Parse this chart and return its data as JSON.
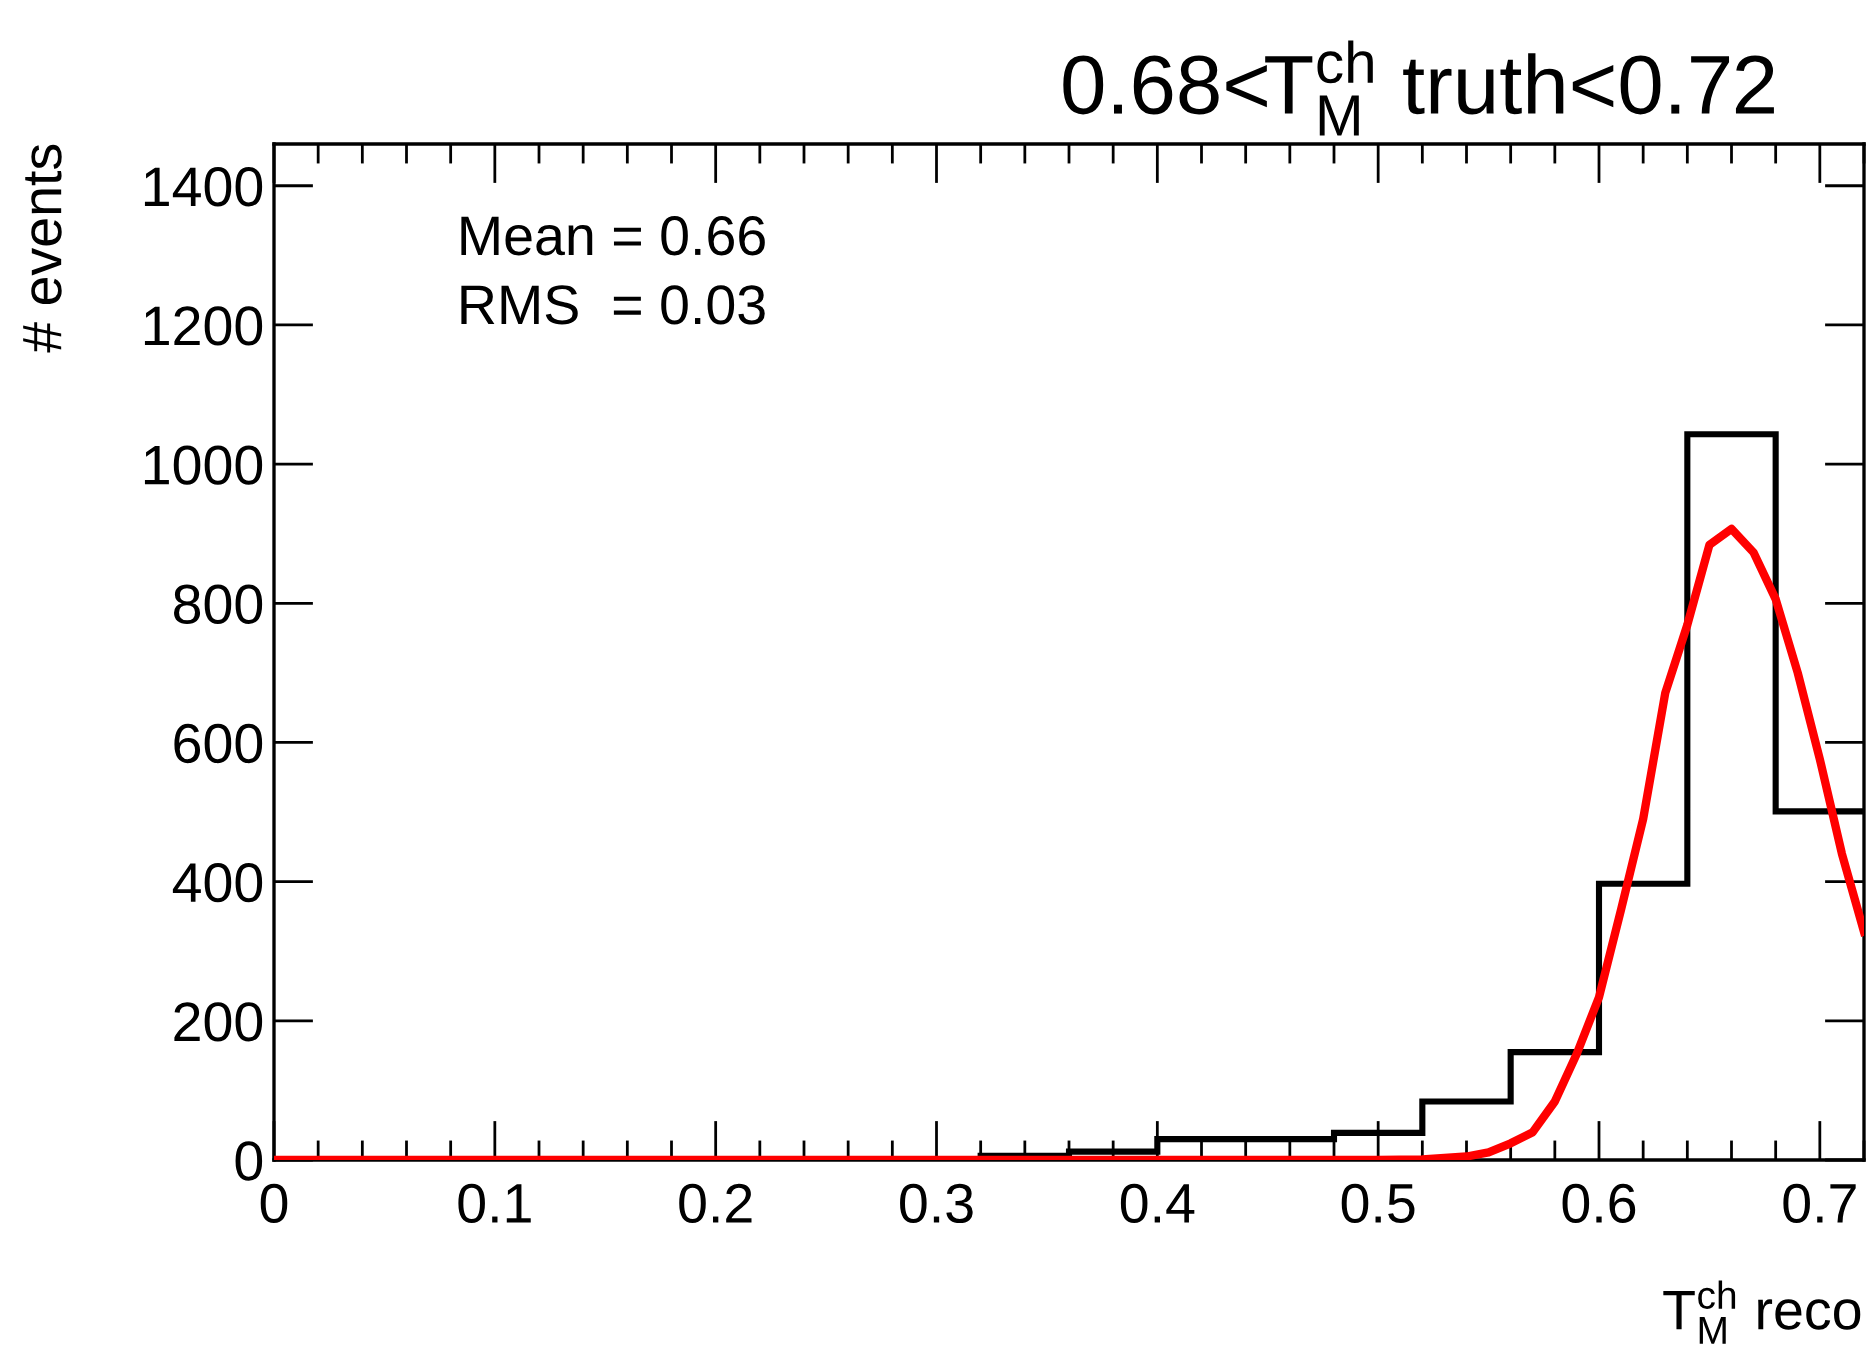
{
  "chart_data": {
    "type": "histogram",
    "title": "0.68<T$^{ch}$$_{M}$ truth<0.72",
    "xlabel": "T$^{ch}$$_{M}$ reco",
    "ylabel": "# events",
    "annotations": [
      "Mean = 0.66",
      "RMS  = 0.03"
    ],
    "bins": [
      0,
      0.04,
      0.08,
      0.12,
      0.16,
      0.2,
      0.24,
      0.28,
      0.32,
      0.36,
      0.4,
      0.44,
      0.48,
      0.52,
      0.56,
      0.6,
      0.64,
      0.68,
      0.72
    ],
    "series": [
      {
        "color": "#000000",
        "values": [
          0,
          0,
          0,
          0,
          0,
          0,
          0,
          0,
          6,
          12,
          30,
          30,
          39,
          84,
          155,
          397,
          1043,
          501
        ]
      },
      {
        "type": "line",
        "color": "#ff0000",
        "x": [
          0,
          0.5,
          0.52,
          0.54,
          0.55,
          0.56,
          0.57,
          0.58,
          0.59,
          0.6,
          0.61,
          0.62,
          0.63,
          0.64,
          0.65,
          0.66,
          0.67,
          0.68,
          0.69,
          0.7,
          0.71,
          0.72
        ],
        "values": [
          0,
          0,
          1,
          5,
          11,
          24,
          40,
          84,
          153,
          234,
          360,
          490,
          671,
          769,
          884,
          907,
          873,
          806,
          700,
          576,
          440,
          328
        ]
      }
    ],
    "xlim": [
      0,
      0.72
    ],
    "xticks": [
      0,
      0.1,
      0.2,
      0.3,
      0.4,
      0.5,
      0.6,
      0.7
    ],
    "ylim": [
      0,
      1460
    ],
    "yticks": [
      0,
      200,
      400,
      600,
      800,
      1000,
      1200,
      1400
    ],
    "grid": false,
    "legend": false
  }
}
